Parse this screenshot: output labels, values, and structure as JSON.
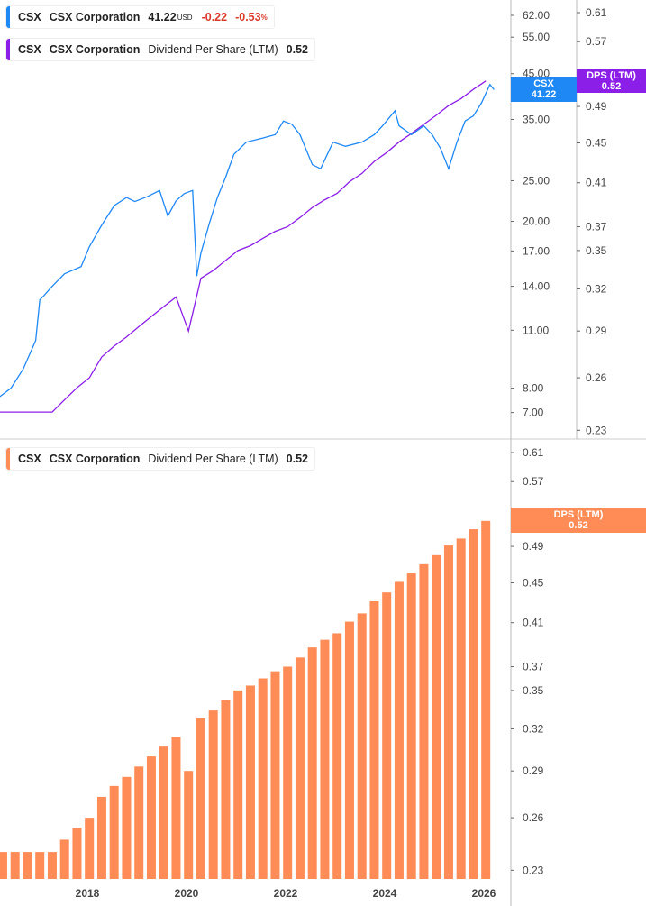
{
  "legend_price": {
    "ticker": "CSX",
    "name": "CSX Corporation",
    "price": "41.22",
    "currency": "USD",
    "change": "-0.22",
    "change_pct": "-0.53",
    "pct_sign": "%"
  },
  "legend_dps_top": {
    "ticker": "CSX",
    "name": "CSX Corporation",
    "metric": "Dividend Per Share (LTM)",
    "value": "0.52"
  },
  "legend_dps_bottom": {
    "ticker": "CSX",
    "name": "CSX Corporation",
    "metric": "Dividend Per Share (LTM)",
    "value": "0.52"
  },
  "tags": {
    "price": {
      "label": "CSX",
      "value": "41.22"
    },
    "dps_top": {
      "label": "DPS (LTM)",
      "value": "0.52"
    },
    "dps_bottom": {
      "label": "DPS (LTM)",
      "value": "0.52"
    }
  },
  "colors": {
    "price": "#1e88f5",
    "dps_line": "#8b1fe8",
    "dps_bars": "#ff8c57",
    "negative": "#d93a2b"
  },
  "chart_data": [
    {
      "type": "line",
      "series": [
        {
          "name": "CSX",
          "axis": "left-price",
          "scale": "log",
          "dates": [
            "2016-03",
            "2016-06",
            "2016-09",
            "2016-12",
            "2017-01",
            "2017-02",
            "2017-04",
            "2017-07",
            "2017-11",
            "2018-01",
            "2018-04",
            "2018-07",
            "2018-10",
            "2018-12",
            "2019-03",
            "2019-06",
            "2019-08",
            "2019-10",
            "2019-12",
            "2020-02",
            "2020-03",
            "2020-04",
            "2020-06",
            "2020-08",
            "2020-10",
            "2020-12",
            "2021-03",
            "2021-07",
            "2021-10",
            "2021-12",
            "2022-02",
            "2022-04",
            "2022-07",
            "2022-09",
            "2022-12",
            "2023-03",
            "2023-07",
            "2023-10",
            "2023-12",
            "2024-03",
            "2024-04",
            "2024-07",
            "2024-10",
            "2024-12",
            "2025-02",
            "2025-04",
            "2025-06",
            "2025-08",
            "2025-10",
            "2025-12",
            "2026-02",
            "2026-03"
          ],
          "values": [
            7.6,
            8.0,
            8.9,
            10.4,
            13.0,
            13.3,
            14.0,
            15.0,
            15.6,
            17.4,
            19.6,
            21.8,
            22.8,
            22.3,
            22.9,
            23.7,
            20.6,
            22.4,
            23.3,
            23.7,
            14.8,
            16.8,
            19.7,
            22.8,
            25.5,
            28.9,
            30.9,
            31.6,
            32.2,
            34.7,
            34.1,
            32.2,
            27.3,
            26.7,
            30.9,
            30.2,
            30.9,
            32.2,
            33.8,
            36.7,
            33.8,
            32.2,
            33.8,
            32.2,
            29.9,
            26.7,
            30.9,
            34.7,
            35.7,
            38.4,
            42.4,
            41.22
          ]
        },
        {
          "name": "Dividend Per Share (LTM)",
          "axis": "right-dps",
          "scale": "log",
          "ref": "dps"
        }
      ],
      "price_axis": {
        "ticks": [
          62,
          55,
          45,
          35,
          25,
          20,
          17,
          14,
          11,
          8,
          7
        ],
        "labels": [
          "62.00",
          "55.00",
          "45.00",
          "35.00",
          "25.00",
          "20.00",
          "17.00",
          "14.00",
          "11.00",
          "8.00",
          "7.00"
        ],
        "range": [
          7,
          62
        ]
      },
      "dps_axis": {
        "ticks": [
          0.61,
          0.57,
          0.49,
          0.45,
          0.41,
          0.37,
          0.35,
          0.32,
          0.29,
          0.26,
          0.23
        ],
        "range": [
          0.23,
          0.61
        ]
      }
    },
    {
      "type": "bar",
      "scale": "log",
      "dps_axis": {
        "ticks": [
          0.61,
          0.57,
          0.53,
          0.49,
          0.45,
          0.41,
          0.37,
          0.35,
          0.32,
          0.29,
          0.26,
          0.23
        ],
        "range": [
          0.23,
          0.61
        ]
      },
      "series": [
        {
          "name": "Dividend Per Share (LTM)",
          "start": "2016-04",
          "frequency": "quarterly",
          "values": [
            0.24,
            0.24,
            0.24,
            0.24,
            0.24,
            0.247,
            0.254,
            0.26,
            0.273,
            0.28,
            0.286,
            0.293,
            0.3,
            0.307,
            0.314,
            0.29,
            0.328,
            0.334,
            0.342,
            0.35,
            0.354,
            0.36,
            0.366,
            0.37,
            0.378,
            0.387,
            0.394,
            0.4,
            0.411,
            0.419,
            0.431,
            0.44,
            0.451,
            0.46,
            0.47,
            0.48,
            0.491,
            0.499,
            0.51,
            0.52
          ]
        }
      ]
    }
  ],
  "x_axis": {
    "labels": [
      "2018",
      "2020",
      "2022",
      "2024",
      "2026"
    ]
  }
}
